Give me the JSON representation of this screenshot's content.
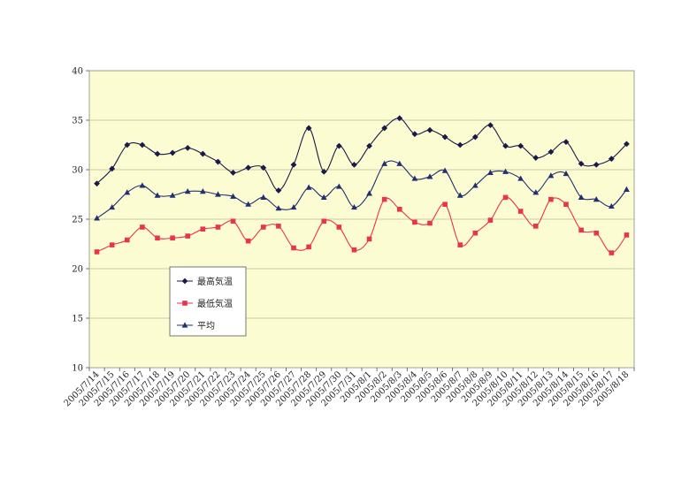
{
  "chart_data": {
    "type": "line",
    "title": "",
    "xlabel": "",
    "ylabel": "",
    "ylim": [
      10,
      40
    ],
    "yticks": [
      10,
      15,
      20,
      25,
      30,
      35,
      40
    ],
    "grid": "horizontal",
    "legend_position": "left-middle",
    "categories": [
      "2005/7/14",
      "2005/7/15",
      "2005/7/16",
      "2005/7/17",
      "2005/7/18",
      "2005/7/19",
      "2005/7/20",
      "2005/7/21",
      "2005/7/22",
      "2005/7/23",
      "2005/7/24",
      "2005/7/25",
      "2005/7/26",
      "2005/7/27",
      "2005/7/28",
      "2005/7/29",
      "2005/7/30",
      "2005/7/31",
      "2005/8/1",
      "2005/8/2",
      "2005/8/3",
      "2005/8/4",
      "2005/8/5",
      "2005/8/6",
      "2005/8/7",
      "2005/8/8",
      "2005/8/9",
      "2005/8/10",
      "2005/8/11",
      "2005/8/12",
      "2005/8/13",
      "2005/8/14",
      "2005/8/15",
      "2005/8/16",
      "2005/8/17",
      "2005/8/18"
    ],
    "series": [
      {
        "name": "最高気温",
        "color": "#1a1a4a",
        "marker": "diamond",
        "values": [
          28.6,
          30.1,
          32.5,
          32.5,
          31.6,
          31.7,
          32.2,
          31.6,
          30.8,
          29.7,
          30.2,
          30.2,
          27.9,
          30.5,
          34.2,
          29.8,
          32.4,
          30.5,
          32.4,
          34.2,
          35.2,
          33.6,
          34.0,
          33.3,
          32.5,
          33.3,
          34.5,
          32.4,
          32.4,
          31.2,
          31.8,
          32.8,
          30.6,
          30.5,
          31.1,
          32.6
        ]
      },
      {
        "name": "最低気温",
        "color": "#e8344e",
        "marker": "square",
        "values": [
          21.7,
          22.4,
          22.9,
          24.2,
          23.1,
          23.1,
          23.3,
          24.0,
          24.2,
          24.8,
          22.8,
          24.2,
          24.3,
          22.1,
          22.2,
          24.8,
          24.2,
          21.9,
          23.0,
          27.0,
          26.0,
          24.7,
          24.6,
          26.5,
          22.4,
          23.6,
          24.9,
          27.2,
          25.8,
          24.3,
          27.0,
          26.5,
          23.9,
          23.6,
          21.6,
          23.4
        ]
      },
      {
        "name": "平均",
        "color": "#203070",
        "marker": "triangle",
        "values": [
          25.1,
          26.2,
          27.7,
          28.4,
          27.4,
          27.4,
          27.8,
          27.8,
          27.5,
          27.3,
          26.5,
          27.2,
          26.1,
          26.2,
          28.2,
          27.2,
          28.3,
          26.2,
          27.6,
          30.6,
          30.6,
          29.1,
          29.3,
          29.9,
          27.4,
          28.4,
          29.7,
          29.8,
          29.1,
          27.7,
          29.4,
          29.6,
          27.2,
          27.0,
          26.3,
          28.0
        ]
      }
    ]
  }
}
